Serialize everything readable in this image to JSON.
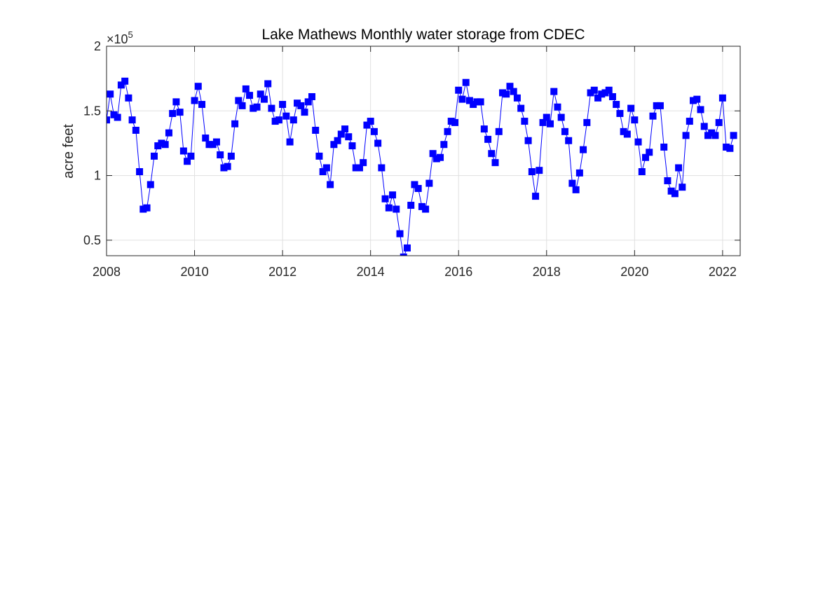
{
  "chart_data": {
    "type": "line",
    "title": "Lake Mathews Monthly water storage from CDEC",
    "xlabel": "",
    "ylabel": "acre feet",
    "y_exponent_base": "×10",
    "y_exponent_power": "5",
    "xlim": [
      2008,
      2022.4
    ],
    "ylim": [
      0.38,
      2.0
    ],
    "x_ticks": [
      2008,
      2010,
      2012,
      2014,
      2016,
      2018,
      2020,
      2022
    ],
    "x_tick_labels": [
      "2008",
      "2010",
      "2012",
      "2014",
      "2016",
      "2018",
      "2020",
      "2022"
    ],
    "y_ticks": [
      0.5,
      1.0,
      1.5,
      2.0
    ],
    "y_tick_labels": [
      "0.5",
      "1",
      "1.5",
      "2"
    ],
    "grid": true,
    "marker": "square",
    "colors": {
      "series": "#0000ff",
      "grid": "#e0e0e0",
      "axis": "#262626"
    },
    "series": [
      {
        "x": [
          2008.0,
          2008.083,
          2008.167,
          2008.25,
          2008.333,
          2008.417,
          2008.5,
          2008.583,
          2008.667,
          2008.75,
          2008.833,
          2008.917,
          2009.0,
          2009.083,
          2009.167,
          2009.25,
          2009.333,
          2009.417,
          2009.5,
          2009.583,
          2009.667,
          2009.75,
          2009.833,
          2009.917,
          2010.0,
          2010.083,
          2010.167,
          2010.25,
          2010.333,
          2010.417,
          2010.5,
          2010.583,
          2010.667,
          2010.75,
          2010.833,
          2010.917,
          2011.0,
          2011.083,
          2011.167,
          2011.25,
          2011.333,
          2011.417,
          2011.5,
          2011.583,
          2011.667,
          2011.75,
          2011.833,
          2011.917,
          2012.0,
          2012.083,
          2012.167,
          2012.25,
          2012.333,
          2012.417,
          2012.5,
          2012.583,
          2012.667,
          2012.75,
          2012.833,
          2012.917,
          2013.0,
          2013.083,
          2013.167,
          2013.25,
          2013.333,
          2013.417,
          2013.5,
          2013.583,
          2013.667,
          2013.75,
          2013.833,
          2013.917,
          2014.0,
          2014.083,
          2014.167,
          2014.25,
          2014.333,
          2014.417,
          2014.5,
          2014.583,
          2014.667,
          2014.75,
          2014.833,
          2014.917,
          2015.0,
          2015.083,
          2015.167,
          2015.25,
          2015.333,
          2015.417,
          2015.5,
          2015.583,
          2015.667,
          2015.75,
          2015.833,
          2015.917,
          2016.0,
          2016.083,
          2016.167,
          2016.25,
          2016.333,
          2016.417,
          2016.5,
          2016.583,
          2016.667,
          2016.75,
          2016.833,
          2016.917,
          2017.0,
          2017.083,
          2017.167,
          2017.25,
          2017.333,
          2017.417,
          2017.5,
          2017.583,
          2017.667,
          2017.75,
          2017.833,
          2017.917,
          2018.0,
          2018.083,
          2018.167,
          2018.25,
          2018.333,
          2018.417,
          2018.5,
          2018.583,
          2018.667,
          2018.75,
          2018.833,
          2018.917,
          2019.0,
          2019.083,
          2019.167,
          2019.25,
          2019.333,
          2019.417,
          2019.5,
          2019.583,
          2019.667,
          2019.75,
          2019.833,
          2019.917,
          2020.0,
          2020.083,
          2020.167,
          2020.25,
          2020.333,
          2020.417,
          2020.5,
          2020.583,
          2020.667,
          2020.75,
          2020.833,
          2020.917,
          2021.0,
          2021.083,
          2021.167,
          2021.25,
          2021.333,
          2021.417,
          2021.5,
          2021.583,
          2021.667,
          2021.75,
          2021.833,
          2021.917,
          2022.0,
          2022.083,
          2022.167,
          2022.25
        ],
        "values": [
          1.43,
          1.63,
          1.47,
          1.45,
          1.7,
          1.73,
          1.6,
          1.43,
          1.35,
          1.03,
          0.74,
          0.75,
          0.93,
          1.15,
          1.23,
          1.25,
          1.24,
          1.33,
          1.48,
          1.57,
          1.49,
          1.19,
          1.11,
          1.15,
          1.58,
          1.69,
          1.55,
          1.29,
          1.24,
          1.24,
          1.26,
          1.16,
          1.06,
          1.07,
          1.15,
          1.4,
          1.58,
          1.54,
          1.67,
          1.62,
          1.52,
          1.53,
          1.63,
          1.59,
          1.71,
          1.52,
          1.42,
          1.43,
          1.55,
          1.46,
          1.26,
          1.43,
          1.56,
          1.54,
          1.49,
          1.57,
          1.61,
          1.35,
          1.15,
          1.03,
          1.06,
          0.93,
          1.24,
          1.27,
          1.32,
          1.36,
          1.3,
          1.23,
          1.06,
          1.06,
          1.1,
          1.39,
          1.42,
          1.34,
          1.25,
          1.06,
          0.82,
          0.75,
          0.85,
          0.74,
          0.55,
          0.37,
          0.44,
          0.77,
          0.93,
          0.9,
          0.76,
          0.74,
          0.94,
          1.17,
          1.13,
          1.14,
          1.24,
          1.34,
          1.42,
          1.41,
          1.66,
          1.59,
          1.72,
          1.58,
          1.55,
          1.57,
          1.57,
          1.36,
          1.28,
          1.17,
          1.1,
          1.34,
          1.64,
          1.63,
          1.69,
          1.65,
          1.6,
          1.52,
          1.42,
          1.27,
          1.03,
          0.84,
          1.04,
          1.41,
          1.45,
          1.4,
          1.65,
          1.53,
          1.45,
          1.34,
          1.27,
          0.94,
          0.89,
          1.02,
          1.2,
          1.41,
          1.64,
          1.66,
          1.6,
          1.63,
          1.64,
          1.66,
          1.61,
          1.55,
          1.48,
          1.34,
          1.32,
          1.52,
          1.43,
          1.26,
          1.03,
          1.14,
          1.18,
          1.46,
          1.54,
          1.54,
          1.22,
          0.96,
          0.88,
          0.86,
          1.06,
          0.91,
          1.31,
          1.42,
          1.58,
          1.59,
          1.51,
          1.38,
          1.31,
          1.33,
          1.31,
          1.41,
          1.6,
          1.22,
          1.21,
          1.31
        ]
      }
    ]
  }
}
